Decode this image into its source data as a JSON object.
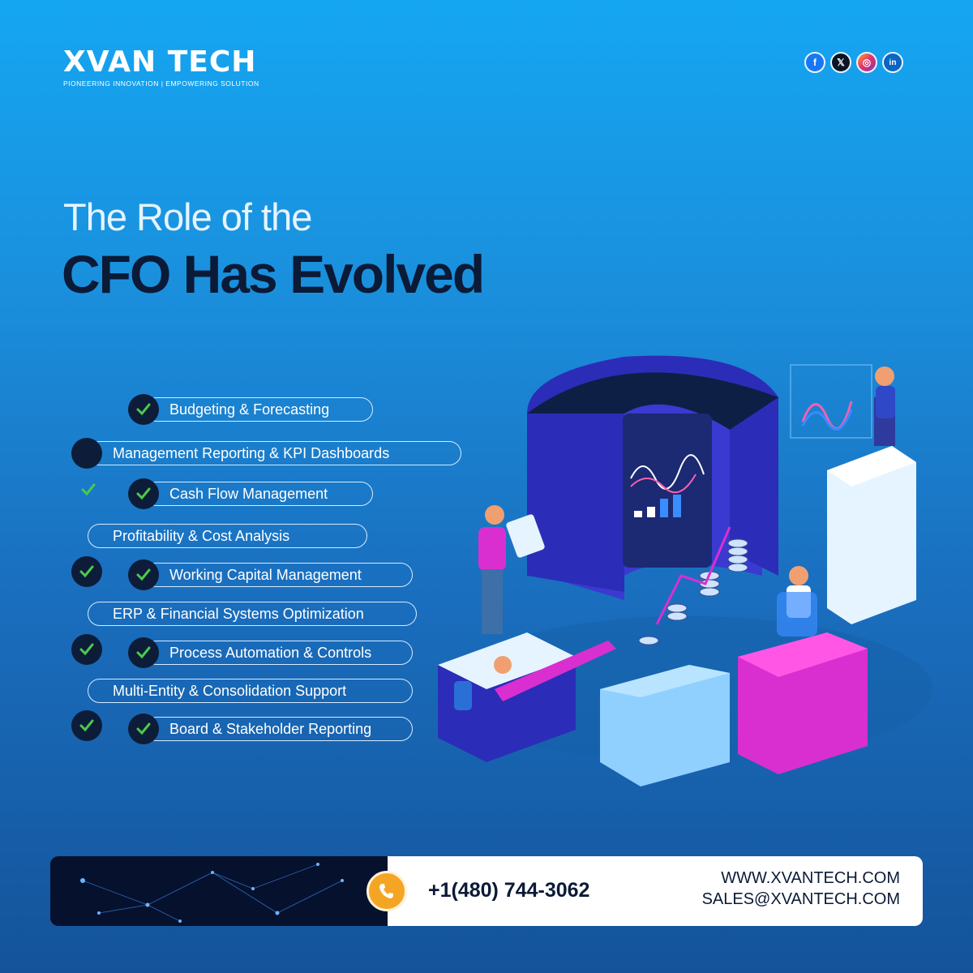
{
  "brand": {
    "name": "XVAN TECH",
    "tagline": "PIONEERING INNOVATION | EMPOWERING SOLUTION"
  },
  "social": [
    {
      "icon": "facebook-icon",
      "label": "f"
    },
    {
      "icon": "x-icon",
      "label": "𝕏"
    },
    {
      "icon": "instagram-icon",
      "label": "◎"
    },
    {
      "icon": "linkedin-icon",
      "label": "in"
    }
  ],
  "heading": {
    "line1": "The Role of the",
    "line2": "CFO Has Evolved"
  },
  "items": [
    "Budgeting & Forecasting",
    "Management Reporting & KPI Dashboards",
    "Cash Flow Management",
    "Profitability & Cost Analysis",
    "Working Capital Management",
    "ERP & Financial Systems Optimization",
    "Process Automation & Controls",
    "Multi-Entity & Consolidation Support",
    "Board & Stakeholder Reporting"
  ],
  "contact": {
    "phone": "+1(480) 744-3062",
    "website": "WWW.XVANTECH.COM",
    "email": "SALES@XVANTECH.COM"
  },
  "colors": {
    "accent_dark": "#0b1a36",
    "check_green": "#4cc94c",
    "phone_orange": "#f5a524"
  }
}
